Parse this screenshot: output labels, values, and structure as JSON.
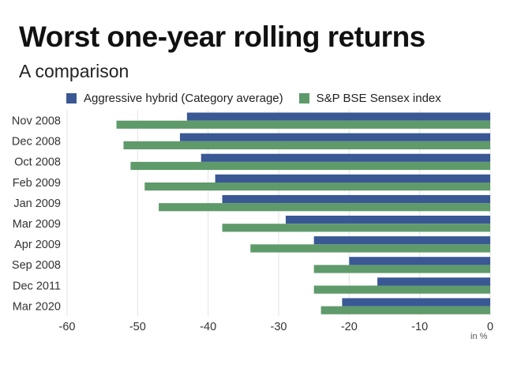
{
  "chart_data": {
    "type": "bar",
    "orientation": "horizontal",
    "title": "Worst one-year rolling returns",
    "subtitle": "A comparison",
    "xlabel": "in %",
    "ylabel": "",
    "categories": [
      "Nov 2008",
      "Dec 2008",
      "Oct 2008",
      "Feb 2009",
      "Jan 2009",
      "Mar 2009",
      "Apr 2009",
      "Sep 2008",
      "Dec 2011",
      "Mar 2020"
    ],
    "series": [
      {
        "name": "Aggressive hybrid (Category average)",
        "color": "#3a5894",
        "values": [
          -43,
          -44,
          -41,
          -39,
          -38,
          -29,
          -25,
          -20,
          -16,
          -21
        ]
      },
      {
        "name": "S&P BSE Sensex index",
        "color": "#5f9a6b",
        "values": [
          -53,
          -52,
          -51,
          -49,
          -47,
          -38,
          -34,
          -25,
          -25,
          -24
        ]
      }
    ],
    "xlim": [
      -60,
      0
    ],
    "xticks": [
      -60,
      -50,
      -40,
      -30,
      -20,
      -10,
      0
    ],
    "grid": true,
    "legend_position": "top"
  }
}
